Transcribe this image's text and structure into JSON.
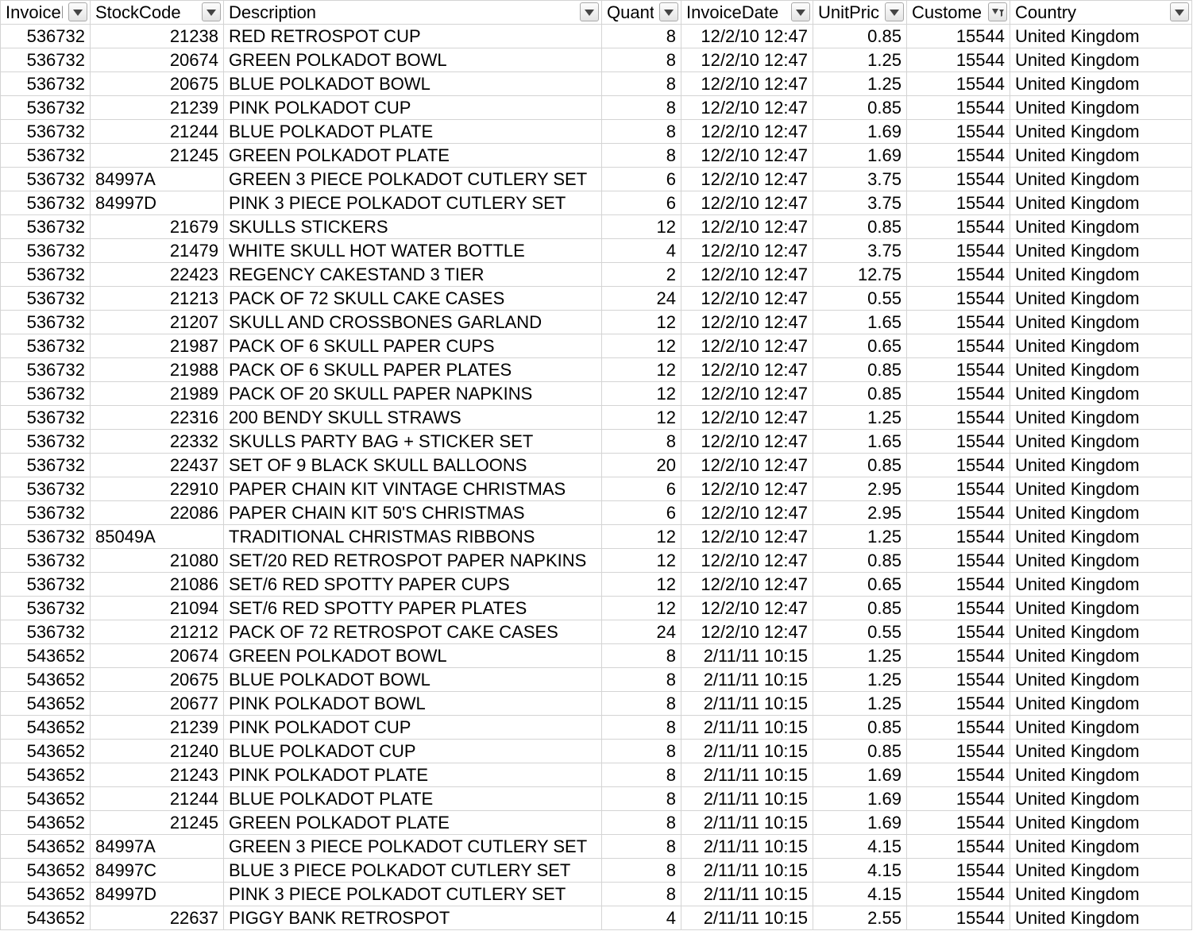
{
  "columns": [
    {
      "key": "invoice",
      "label": "InvoiceNo",
      "align": "num",
      "filtered": false
    },
    {
      "key": "stock",
      "label": "StockCode",
      "align": "mixed",
      "filtered": false
    },
    {
      "key": "desc",
      "label": "Description",
      "align": "txt",
      "filtered": false
    },
    {
      "key": "qty",
      "label": "Quantity",
      "align": "num",
      "filtered": false
    },
    {
      "key": "date",
      "label": "InvoiceDate",
      "align": "num",
      "filtered": false
    },
    {
      "key": "price",
      "label": "UnitPrice",
      "align": "num",
      "filtered": false
    },
    {
      "key": "customer",
      "label": "CustomerID",
      "align": "num",
      "filtered": true
    },
    {
      "key": "country",
      "label": "Country",
      "align": "txt",
      "filtered": false
    }
  ],
  "rows": [
    [
      "536732",
      "21238",
      "RED RETROSPOT CUP",
      "8",
      "12/2/10 12:47",
      "0.85",
      "15544",
      "United Kingdom"
    ],
    [
      "536732",
      "20674",
      "GREEN POLKADOT BOWL",
      "8",
      "12/2/10 12:47",
      "1.25",
      "15544",
      "United Kingdom"
    ],
    [
      "536732",
      "20675",
      "BLUE POLKADOT BOWL",
      "8",
      "12/2/10 12:47",
      "1.25",
      "15544",
      "United Kingdom"
    ],
    [
      "536732",
      "21239",
      "PINK  POLKADOT CUP",
      "8",
      "12/2/10 12:47",
      "0.85",
      "15544",
      "United Kingdom"
    ],
    [
      "536732",
      "21244",
      "BLUE POLKADOT PLATE",
      "8",
      "12/2/10 12:47",
      "1.69",
      "15544",
      "United Kingdom"
    ],
    [
      "536732",
      "21245",
      "GREEN POLKADOT PLATE",
      "8",
      "12/2/10 12:47",
      "1.69",
      "15544",
      "United Kingdom"
    ],
    [
      "536732",
      "84997A",
      "GREEN 3 PIECE POLKADOT CUTLERY SET",
      "6",
      "12/2/10 12:47",
      "3.75",
      "15544",
      "United Kingdom"
    ],
    [
      "536732",
      "84997D",
      "PINK 3 PIECE POLKADOT CUTLERY SET",
      "6",
      "12/2/10 12:47",
      "3.75",
      "15544",
      "United Kingdom"
    ],
    [
      "536732",
      "21679",
      "SKULLS  STICKERS",
      "12",
      "12/2/10 12:47",
      "0.85",
      "15544",
      "United Kingdom"
    ],
    [
      "536732",
      "21479",
      "WHITE SKULL HOT WATER BOTTLE",
      "4",
      "12/2/10 12:47",
      "3.75",
      "15544",
      "United Kingdom"
    ],
    [
      "536732",
      "22423",
      "REGENCY CAKESTAND 3 TIER",
      "2",
      "12/2/10 12:47",
      "12.75",
      "15544",
      "United Kingdom"
    ],
    [
      "536732",
      "21213",
      "PACK OF 72 SKULL CAKE CASES",
      "24",
      "12/2/10 12:47",
      "0.55",
      "15544",
      "United Kingdom"
    ],
    [
      "536732",
      "21207",
      "SKULL AND CROSSBONES  GARLAND",
      "12",
      "12/2/10 12:47",
      "1.65",
      "15544",
      "United Kingdom"
    ],
    [
      "536732",
      "21987",
      "PACK OF 6 SKULL PAPER CUPS",
      "12",
      "12/2/10 12:47",
      "0.65",
      "15544",
      "United Kingdom"
    ],
    [
      "536732",
      "21988",
      "PACK OF 6 SKULL PAPER PLATES",
      "12",
      "12/2/10 12:47",
      "0.85",
      "15544",
      "United Kingdom"
    ],
    [
      "536732",
      "21989",
      "PACK OF 20 SKULL PAPER NAPKINS",
      "12",
      "12/2/10 12:47",
      "0.85",
      "15544",
      "United Kingdom"
    ],
    [
      "536732",
      "22316",
      "200 BENDY SKULL STRAWS",
      "12",
      "12/2/10 12:47",
      "1.25",
      "15544",
      "United Kingdom"
    ],
    [
      "536732",
      "22332",
      "SKULLS PARTY BAG + STICKER SET",
      "8",
      "12/2/10 12:47",
      "1.65",
      "15544",
      "United Kingdom"
    ],
    [
      "536732",
      "22437",
      "SET OF 9 BLACK SKULL BALLOONS",
      "20",
      "12/2/10 12:47",
      "0.85",
      "15544",
      "United Kingdom"
    ],
    [
      "536732",
      "22910",
      "PAPER CHAIN KIT VINTAGE CHRISTMAS",
      "6",
      "12/2/10 12:47",
      "2.95",
      "15544",
      "United Kingdom"
    ],
    [
      "536732",
      "22086",
      "PAPER CHAIN KIT 50'S CHRISTMAS",
      "6",
      "12/2/10 12:47",
      "2.95",
      "15544",
      "United Kingdom"
    ],
    [
      "536732",
      "85049A",
      "TRADITIONAL CHRISTMAS RIBBONS",
      "12",
      "12/2/10 12:47",
      "1.25",
      "15544",
      "United Kingdom"
    ],
    [
      "536732",
      "21080",
      "SET/20 RED RETROSPOT PAPER NAPKINS",
      "12",
      "12/2/10 12:47",
      "0.85",
      "15544",
      "United Kingdom"
    ],
    [
      "536732",
      "21086",
      "SET/6 RED SPOTTY PAPER CUPS",
      "12",
      "12/2/10 12:47",
      "0.65",
      "15544",
      "United Kingdom"
    ],
    [
      "536732",
      "21094",
      "SET/6 RED SPOTTY PAPER PLATES",
      "12",
      "12/2/10 12:47",
      "0.85",
      "15544",
      "United Kingdom"
    ],
    [
      "536732",
      "21212",
      "PACK OF 72 RETROSPOT CAKE CASES",
      "24",
      "12/2/10 12:47",
      "0.55",
      "15544",
      "United Kingdom"
    ],
    [
      "543652",
      "20674",
      "GREEN POLKADOT BOWL",
      "8",
      "2/11/11 10:15",
      "1.25",
      "15544",
      "United Kingdom"
    ],
    [
      "543652",
      "20675",
      "BLUE POLKADOT BOWL",
      "8",
      "2/11/11 10:15",
      "1.25",
      "15544",
      "United Kingdom"
    ],
    [
      "543652",
      "20677",
      "PINK POLKADOT BOWL",
      "8",
      "2/11/11 10:15",
      "1.25",
      "15544",
      "United Kingdom"
    ],
    [
      "543652",
      "21239",
      "PINK  POLKADOT CUP",
      "8",
      "2/11/11 10:15",
      "0.85",
      "15544",
      "United Kingdom"
    ],
    [
      "543652",
      "21240",
      "BLUE POLKADOT CUP",
      "8",
      "2/11/11 10:15",
      "0.85",
      "15544",
      "United Kingdom"
    ],
    [
      "543652",
      "21243",
      "PINK  POLKADOT PLATE",
      "8",
      "2/11/11 10:15",
      "1.69",
      "15544",
      "United Kingdom"
    ],
    [
      "543652",
      "21244",
      "BLUE POLKADOT PLATE",
      "8",
      "2/11/11 10:15",
      "1.69",
      "15544",
      "United Kingdom"
    ],
    [
      "543652",
      "21245",
      "GREEN POLKADOT PLATE",
      "8",
      "2/11/11 10:15",
      "1.69",
      "15544",
      "United Kingdom"
    ],
    [
      "543652",
      "84997A",
      "GREEN 3 PIECE POLKADOT CUTLERY SET",
      "8",
      "2/11/11 10:15",
      "4.15",
      "15544",
      "United Kingdom"
    ],
    [
      "543652",
      "84997C",
      "BLUE 3 PIECE POLKADOT CUTLERY SET",
      "8",
      "2/11/11 10:15",
      "4.15",
      "15544",
      "United Kingdom"
    ],
    [
      "543652",
      "84997D",
      "PINK 3 PIECE POLKADOT CUTLERY SET",
      "8",
      "2/11/11 10:15",
      "4.15",
      "15544",
      "United Kingdom"
    ],
    [
      "543652",
      "22637",
      "PIGGY BANK RETROSPOT",
      "4",
      "2/11/11 10:15",
      "2.55",
      "15544",
      "United Kingdom"
    ]
  ],
  "selection": {
    "row": 25,
    "col": 2
  },
  "colors": {
    "grid_line": "#d4d4d4",
    "selection": "#2a6ad6"
  },
  "icons": {
    "filter": "dropdown-arrow-icon",
    "filtered": "funnel-filter-icon"
  }
}
